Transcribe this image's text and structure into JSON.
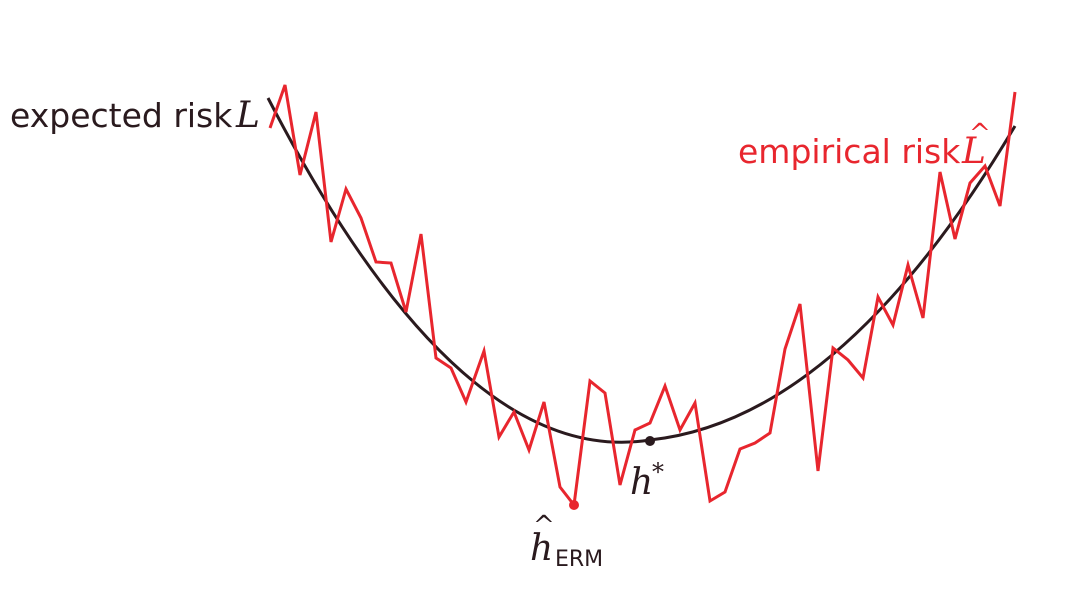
{
  "labels": {
    "expected_text": "expected risk",
    "expected_symbol": "L",
    "empirical_text": "empirical risk",
    "empirical_symbol": "L",
    "empirical_hat": "^",
    "h_star_base": "h",
    "h_star_sup": "*",
    "h_erm_base": "h",
    "h_erm_hat": "^",
    "h_erm_sub": "ERM"
  },
  "colors": {
    "expected": "#2a1a1e",
    "empirical": "#e8262e",
    "background": "#ffffff"
  },
  "diagram": {
    "expected_curve": {
      "shape": "parabola",
      "min_at": 0.5
    },
    "empirical_noise": [
      0.06,
      -0.04,
      0.05,
      -0.03,
      0.04,
      -0.05,
      0.03,
      0.02,
      -0.06,
      0.05,
      -0.02,
      0.03,
      -0.04,
      0.06,
      -0.03,
      0.02,
      -0.05,
      0.04,
      -0.03,
      0.05,
      -0.02,
      0.03,
      -0.06,
      0.04,
      -0.03,
      0.05,
      -0.04,
      0.02,
      -0.03,
      0.05,
      -0.04,
      0.03
    ]
  }
}
